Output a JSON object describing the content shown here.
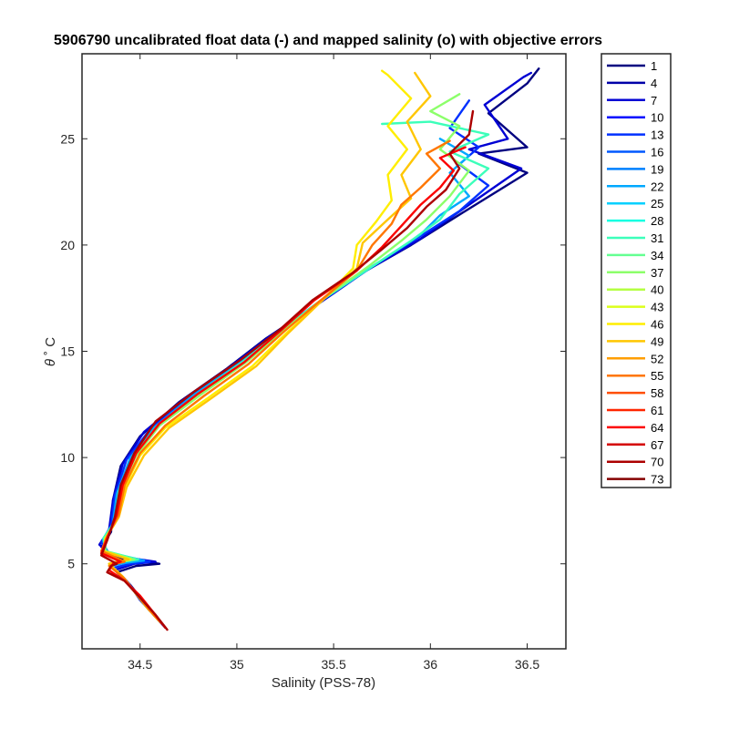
{
  "chart_data": {
    "type": "line",
    "title": "5906790 uncalibrated float data (-) and mapped salinity (o) with objective errors",
    "xlabel": "Salinity (PSS-78)",
    "ylabel_symbol": "θ",
    "ylabel_unit": "˚ C",
    "xlim": [
      34.2,
      36.7
    ],
    "ylim": [
      1,
      29
    ],
    "x_ticks": [
      34.5,
      35,
      35.5,
      36,
      36.5
    ],
    "y_ticks": [
      5,
      10,
      15,
      20,
      25
    ],
    "grid": false,
    "legend_position": "outside-right",
    "colormap": "jet",
    "legend": [
      "1",
      "4",
      "7",
      "10",
      "13",
      "16",
      "19",
      "22",
      "25",
      "28",
      "31",
      "34",
      "37",
      "40",
      "43",
      "46",
      "49",
      "52",
      "55",
      "58",
      "61",
      "64",
      "67",
      "70",
      "73"
    ],
    "legend_colors": [
      "#000080",
      "#0000a8",
      "#0000d4",
      "#0008ff",
      "#0030ff",
      "#0058ff",
      "#0080ff",
      "#00a8ff",
      "#00d0ff",
      "#14ffe2",
      "#3cffba",
      "#64ff92",
      "#8cff6a",
      "#b4ff42",
      "#dcff1a",
      "#ffee00",
      "#ffc600",
      "#ff9e00",
      "#ff7600",
      "#ff4e00",
      "#ff2600",
      "#fc0000",
      "#d40000",
      "#ac0000",
      "#850000"
    ],
    "series_profiles": [
      {
        "profile": 1,
        "color": "#000080",
        "points": [
          [
            34.63,
            2.0
          ],
          [
            34.58,
            2.5
          ],
          [
            34.52,
            3.2
          ],
          [
            34.45,
            4.0
          ],
          [
            34.38,
            4.6
          ],
          [
            34.48,
            4.9
          ],
          [
            34.6,
            5.0
          ],
          [
            34.36,
            5.3
          ],
          [
            34.3,
            5.8
          ],
          [
            34.35,
            6.5
          ],
          [
            34.36,
            8
          ],
          [
            34.4,
            9.6
          ],
          [
            34.5,
            11
          ],
          [
            34.7,
            12.6
          ],
          [
            34.95,
            14.2
          ],
          [
            35.15,
            15.6
          ],
          [
            35.38,
            17
          ],
          [
            35.65,
            18.7
          ],
          [
            35.9,
            20
          ],
          [
            36.18,
            21.6
          ],
          [
            36.5,
            23.4
          ],
          [
            36.25,
            24.3
          ],
          [
            36.5,
            24.6
          ],
          [
            36.3,
            26.2
          ],
          [
            36.5,
            27.6
          ],
          [
            36.56,
            28.3
          ]
        ]
      },
      {
        "profile": 7,
        "color": "#0000d4",
        "points": [
          [
            34.62,
            2.1
          ],
          [
            34.57,
            2.6
          ],
          [
            34.5,
            3.3
          ],
          [
            34.44,
            4.1
          ],
          [
            34.37,
            4.7
          ],
          [
            34.47,
            5.0
          ],
          [
            34.58,
            5.1
          ],
          [
            34.35,
            5.4
          ],
          [
            34.29,
            5.9
          ],
          [
            34.34,
            6.6
          ],
          [
            34.36,
            8
          ],
          [
            34.41,
            9.7
          ],
          [
            34.52,
            11.2
          ],
          [
            34.72,
            12.7
          ],
          [
            34.97,
            14.3
          ],
          [
            35.17,
            15.7
          ],
          [
            35.4,
            17.1
          ],
          [
            35.67,
            18.8
          ],
          [
            35.95,
            20.3
          ],
          [
            36.2,
            21.9
          ],
          [
            36.47,
            23.6
          ],
          [
            36.2,
            24.5
          ],
          [
            36.4,
            25
          ],
          [
            36.28,
            26.6
          ],
          [
            36.48,
            27.9
          ],
          [
            36.52,
            28.1
          ]
        ]
      },
      {
        "profile": 13,
        "color": "#0030ff",
        "points": [
          [
            34.61,
            2.2
          ],
          [
            34.55,
            2.8
          ],
          [
            34.49,
            3.5
          ],
          [
            34.43,
            4.2
          ],
          [
            34.36,
            4.8
          ],
          [
            34.45,
            5.0
          ],
          [
            34.55,
            5.1
          ],
          [
            34.34,
            5.5
          ],
          [
            34.3,
            6.0
          ],
          [
            34.35,
            6.8
          ],
          [
            34.37,
            8.2
          ],
          [
            34.43,
            9.9
          ],
          [
            34.55,
            11.3
          ],
          [
            34.75,
            12.8
          ],
          [
            35.0,
            14.4
          ],
          [
            35.19,
            15.8
          ],
          [
            35.41,
            17.2
          ],
          [
            35.7,
            19
          ],
          [
            35.98,
            20.6
          ],
          [
            36.15,
            21.6
          ],
          [
            36.3,
            22.8
          ],
          [
            36.15,
            23.8
          ],
          [
            36.25,
            24.6
          ],
          [
            36.1,
            25.5
          ],
          [
            36.2,
            26.8
          ]
        ]
      },
      {
        "profile": 22,
        "color": "#00a8ff",
        "points": [
          [
            34.6,
            2.3
          ],
          [
            34.54,
            2.9
          ],
          [
            34.48,
            3.6
          ],
          [
            34.42,
            4.3
          ],
          [
            34.35,
            4.9
          ],
          [
            34.43,
            5.05
          ],
          [
            34.52,
            5.15
          ],
          [
            34.33,
            5.55
          ],
          [
            34.31,
            6.1
          ],
          [
            34.36,
            6.9
          ],
          [
            34.38,
            8.3
          ],
          [
            34.45,
            10
          ],
          [
            34.57,
            11.4
          ],
          [
            34.77,
            12.9
          ],
          [
            35.02,
            14.5
          ],
          [
            35.21,
            15.9
          ],
          [
            35.42,
            17.3
          ],
          [
            35.72,
            19.1
          ],
          [
            35.95,
            20.5
          ],
          [
            36.05,
            21.4
          ],
          [
            36.2,
            22.3
          ],
          [
            36.1,
            23.4
          ],
          [
            36.2,
            24.2
          ],
          [
            36.05,
            25.0
          ]
        ]
      },
      {
        "profile": 31,
        "color": "#3cffba",
        "points": [
          [
            34.6,
            2.3
          ],
          [
            34.53,
            3.0
          ],
          [
            34.47,
            3.7
          ],
          [
            34.41,
            4.4
          ],
          [
            34.34,
            5.0
          ],
          [
            34.41,
            5.1
          ],
          [
            34.49,
            5.2
          ],
          [
            34.32,
            5.6
          ],
          [
            34.31,
            6.2
          ],
          [
            34.37,
            7.0
          ],
          [
            34.39,
            8.4
          ],
          [
            34.47,
            10.1
          ],
          [
            34.59,
            11.5
          ],
          [
            34.8,
            13
          ],
          [
            35.03,
            14.5
          ],
          [
            35.22,
            15.9
          ],
          [
            35.42,
            17.3
          ],
          [
            35.7,
            19
          ],
          [
            35.9,
            20.2
          ],
          [
            36.05,
            21.2
          ],
          [
            36.15,
            22.4
          ],
          [
            36.3,
            23.6
          ],
          [
            36.1,
            24.4
          ],
          [
            36.3,
            25.2
          ],
          [
            36.0,
            25.8
          ],
          [
            35.75,
            25.7
          ]
        ]
      },
      {
        "profile": 40,
        "color": "#8cff6a",
        "points": [
          [
            34.6,
            2.3
          ],
          [
            34.53,
            3.0
          ],
          [
            34.47,
            3.7
          ],
          [
            34.41,
            4.4
          ],
          [
            34.34,
            5.0
          ],
          [
            34.4,
            5.1
          ],
          [
            34.47,
            5.2
          ],
          [
            34.32,
            5.6
          ],
          [
            34.32,
            6.2
          ],
          [
            34.38,
            7.1
          ],
          [
            34.4,
            8.5
          ],
          [
            34.48,
            10.1
          ],
          [
            34.6,
            11.5
          ],
          [
            34.82,
            13
          ],
          [
            35.05,
            14.5
          ],
          [
            35.23,
            15.9
          ],
          [
            35.42,
            17.3
          ],
          [
            35.68,
            19
          ],
          [
            35.85,
            20.2
          ],
          [
            35.98,
            21.2
          ],
          [
            36.1,
            22.3
          ],
          [
            36.2,
            23.5
          ],
          [
            36.05,
            24.5
          ],
          [
            36.15,
            25.6
          ],
          [
            36.0,
            26.3
          ],
          [
            36.15,
            27.1
          ]
        ]
      },
      {
        "profile": 46,
        "color": "#ffee00",
        "points": [
          [
            34.6,
            2.3
          ],
          [
            34.54,
            2.9
          ],
          [
            34.47,
            3.7
          ],
          [
            34.41,
            4.4
          ],
          [
            34.34,
            5.0
          ],
          [
            34.39,
            5.1
          ],
          [
            34.45,
            5.2
          ],
          [
            34.31,
            5.6
          ],
          [
            34.32,
            6.2
          ],
          [
            34.38,
            7.1
          ],
          [
            34.42,
            8.6
          ],
          [
            34.5,
            10.1
          ],
          [
            34.63,
            11.4
          ],
          [
            34.85,
            12.8
          ],
          [
            35.08,
            14.3
          ],
          [
            35.25,
            15.8
          ],
          [
            35.43,
            17.3
          ],
          [
            35.6,
            18.9
          ],
          [
            35.62,
            20.0
          ],
          [
            35.72,
            21.1
          ],
          [
            35.8,
            22.1
          ],
          [
            35.78,
            23.3
          ],
          [
            35.88,
            24.5
          ],
          [
            35.78,
            25.6
          ],
          [
            35.9,
            26.9
          ],
          [
            35.78,
            28.0
          ],
          [
            35.75,
            28.2
          ]
        ]
      },
      {
        "profile": 49,
        "color": "#ffc600",
        "points": [
          [
            34.6,
            2.3
          ],
          [
            34.54,
            2.9
          ],
          [
            34.47,
            3.7
          ],
          [
            34.41,
            4.4
          ],
          [
            34.34,
            5.0
          ],
          [
            34.38,
            5.1
          ],
          [
            34.44,
            5.2
          ],
          [
            34.31,
            5.6
          ],
          [
            34.33,
            6.3
          ],
          [
            34.39,
            7.2
          ],
          [
            34.43,
            8.6
          ],
          [
            34.52,
            10.1
          ],
          [
            34.65,
            11.4
          ],
          [
            34.87,
            12.8
          ],
          [
            35.1,
            14.3
          ],
          [
            35.26,
            15.8
          ],
          [
            35.43,
            17.3
          ],
          [
            35.62,
            18.9
          ],
          [
            35.65,
            20.1
          ],
          [
            35.78,
            21.2
          ],
          [
            35.9,
            22.2
          ],
          [
            35.85,
            23.3
          ],
          [
            35.95,
            24.5
          ],
          [
            35.88,
            25.8
          ],
          [
            36.0,
            27.0
          ],
          [
            35.92,
            28.1
          ]
        ]
      },
      {
        "profile": 55,
        "color": "#ff7600",
        "points": [
          [
            34.61,
            2.2
          ],
          [
            34.55,
            2.8
          ],
          [
            34.48,
            3.6
          ],
          [
            34.42,
            4.3
          ],
          [
            34.34,
            4.9
          ],
          [
            34.37,
            5.0
          ],
          [
            34.42,
            5.1
          ],
          [
            34.3,
            5.6
          ],
          [
            34.33,
            6.3
          ],
          [
            34.39,
            7.3
          ],
          [
            34.42,
            8.7
          ],
          [
            34.5,
            10.2
          ],
          [
            34.63,
            11.5
          ],
          [
            34.83,
            12.9
          ],
          [
            35.06,
            14.4
          ],
          [
            35.24,
            15.9
          ],
          [
            35.42,
            17.3
          ],
          [
            35.62,
            18.8
          ],
          [
            35.7,
            20.0
          ],
          [
            35.8,
            21.0
          ],
          [
            35.85,
            21.9
          ],
          [
            35.95,
            22.7
          ],
          [
            36.05,
            23.6
          ],
          [
            35.98,
            24.3
          ],
          [
            36.1,
            24.9
          ]
        ]
      },
      {
        "profile": 64,
        "color": "#fc0000",
        "points": [
          [
            34.63,
            2.0
          ],
          [
            34.57,
            2.7
          ],
          [
            34.5,
            3.5
          ],
          [
            34.42,
            4.2
          ],
          [
            34.34,
            4.7
          ],
          [
            34.36,
            5.0
          ],
          [
            34.4,
            5.1
          ],
          [
            34.3,
            5.5
          ],
          [
            34.33,
            6.2
          ],
          [
            34.38,
            7.3
          ],
          [
            34.41,
            8.7
          ],
          [
            34.48,
            10.2
          ],
          [
            34.6,
            11.6
          ],
          [
            34.8,
            13
          ],
          [
            35.04,
            14.5
          ],
          [
            35.23,
            16
          ],
          [
            35.4,
            17.4
          ],
          [
            35.62,
            18.8
          ],
          [
            35.75,
            19.9
          ],
          [
            35.85,
            20.9
          ],
          [
            35.95,
            21.9
          ],
          [
            36.05,
            22.7
          ],
          [
            36.12,
            23.5
          ],
          [
            36.05,
            24.1
          ],
          [
            36.18,
            24.6
          ]
        ]
      },
      {
        "profile": 70,
        "color": "#ac0000",
        "points": [
          [
            34.64,
            1.9
          ],
          [
            34.58,
            2.6
          ],
          [
            34.5,
            3.4
          ],
          [
            34.42,
            4.2
          ],
          [
            34.33,
            4.6
          ],
          [
            34.35,
            4.9
          ],
          [
            34.38,
            5.0
          ],
          [
            34.3,
            5.4
          ],
          [
            34.33,
            6.1
          ],
          [
            34.37,
            7.2
          ],
          [
            34.4,
            8.7
          ],
          [
            34.47,
            10.2
          ],
          [
            34.58,
            11.7
          ],
          [
            34.78,
            13.1
          ],
          [
            35.02,
            14.6
          ],
          [
            35.22,
            16
          ],
          [
            35.39,
            17.4
          ],
          [
            35.6,
            18.7
          ],
          [
            35.75,
            19.8
          ],
          [
            35.88,
            20.8
          ],
          [
            35.98,
            21.8
          ],
          [
            36.08,
            22.6
          ],
          [
            36.15,
            23.6
          ],
          [
            36.1,
            24.3
          ],
          [
            36.2,
            25.2
          ],
          [
            36.22,
            26.3
          ]
        ]
      }
    ]
  }
}
